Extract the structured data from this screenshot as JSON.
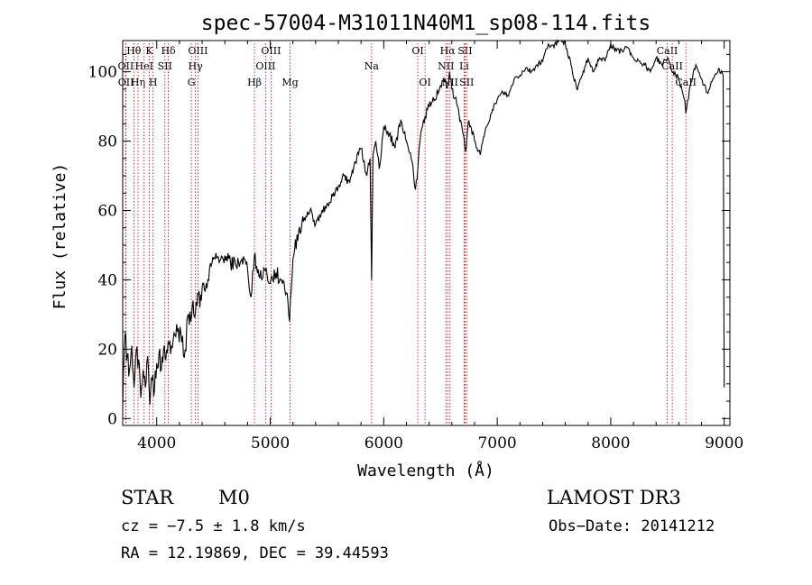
{
  "chart_data": {
    "type": "line",
    "title": "spec-57004-M31011N40M1_sp08-114.fits",
    "xlabel": "Wavelength (Å)",
    "ylabel": "Flux (relative)",
    "xlim": [
      3700,
      9050
    ],
    "ylim": [
      -2,
      109
    ],
    "grid": false,
    "x_ticks": [
      4000,
      5000,
      6000,
      7000,
      8000,
      9000
    ],
    "x_tick_labels": [
      "4000",
      "5000",
      "6000",
      "7000",
      "8000",
      "9000"
    ],
    "y_ticks": [
      0,
      20,
      40,
      60,
      80,
      100
    ],
    "y_tick_labels": [
      "0",
      "20",
      "40",
      "60",
      "80",
      "100"
    ],
    "line_color": "#000000",
    "marker_color": "#cc0000",
    "series": [
      {
        "name": "flux",
        "x": [
          3700,
          3720,
          3740,
          3760,
          3780,
          3800,
          3820,
          3840,
          3860,
          3880,
          3900,
          3920,
          3940,
          3960,
          3980,
          4000,
          4020,
          4040,
          4060,
          4080,
          4100,
          4130,
          4160,
          4190,
          4220,
          4250,
          4280,
          4300,
          4320,
          4340,
          4360,
          4380,
          4400,
          4420,
          4450,
          4480,
          4500,
          4550,
          4600,
          4650,
          4700,
          4750,
          4800,
          4830,
          4860,
          4880,
          4900,
          4950,
          5000,
          5050,
          5100,
          5150,
          5170,
          5185,
          5200,
          5250,
          5300,
          5350,
          5400,
          5450,
          5500,
          5550,
          5600,
          5650,
          5700,
          5750,
          5800,
          5850,
          5880,
          5893,
          5905,
          5930,
          5960,
          6000,
          6050,
          6100,
          6150,
          6200,
          6250,
          6280,
          6300,
          6320,
          6350,
          6400,
          6450,
          6500,
          6530,
          6563,
          6580,
          6600,
          6650,
          6700,
          6720,
          6750,
          6800,
          6850,
          6900,
          6950,
          7000,
          7050,
          7100,
          7150,
          7200,
          7250,
          7300,
          7350,
          7400,
          7450,
          7500,
          7550,
          7600,
          7650,
          7700,
          7750,
          7800,
          7850,
          7900,
          7950,
          8000,
          8050,
          8100,
          8150,
          8200,
          8250,
          8300,
          8350,
          8400,
          8450,
          8500,
          8550,
          8600,
          8650,
          8662,
          8700,
          8750,
          8800,
          8850,
          8900,
          8950,
          8990,
          9000
        ],
        "y": [
          3,
          24,
          18,
          14,
          21,
          9,
          20,
          17,
          6,
          14,
          9,
          18,
          4,
          11,
          8,
          16,
          19,
          14,
          20,
          17,
          22,
          21,
          24,
          26,
          22,
          20,
          30,
          28,
          34,
          30,
          36,
          32,
          38,
          37,
          40,
          44,
          46,
          45,
          47,
          45,
          44,
          46,
          43,
          35,
          47,
          44,
          41,
          43,
          39,
          42,
          40,
          36,
          28,
          37,
          46,
          54,
          58,
          60,
          56,
          59,
          62,
          64,
          67,
          70,
          68,
          74,
          78,
          70,
          75,
          40,
          76,
          80,
          72,
          84,
          82,
          78,
          86,
          80,
          74,
          66,
          72,
          80,
          86,
          90,
          92,
          96,
          98,
          96,
          100,
          95,
          90,
          82,
          77,
          86,
          80,
          76,
          84,
          88,
          92,
          94,
          93,
          98,
          99,
          101,
          100,
          102,
          103,
          108,
          107,
          110,
          108,
          102,
          95,
          99,
          104,
          100,
          104,
          103,
          108,
          106,
          106,
          107,
          104,
          103,
          102,
          100,
          104,
          102,
          104,
          100,
          98,
          92,
          88,
          96,
          102,
          98,
          94,
          98,
          101,
          99,
          9
        ]
      }
    ],
    "line_markers": [
      {
        "label": "Hθ",
        "wavelength": 3798,
        "row": 0
      },
      {
        "label": "OII",
        "wavelength": 3727,
        "row": 1
      },
      {
        "label": "OII",
        "wavelength": 3729,
        "row": 2
      },
      {
        "label": "Hη",
        "wavelength": 3835,
        "row": 2
      },
      {
        "label": "HeI",
        "wavelength": 3889,
        "row": 1
      },
      {
        "label": "K",
        "wavelength": 3934,
        "row": 0
      },
      {
        "label": "H",
        "wavelength": 3968,
        "row": 2
      },
      {
        "label": "SII",
        "wavelength": 4072,
        "row": 1
      },
      {
        "label": "Hδ",
        "wavelength": 4102,
        "row": 0
      },
      {
        "label": "OIII",
        "wavelength": 4363,
        "row": 0
      },
      {
        "label": "Hγ",
        "wavelength": 4341,
        "row": 1
      },
      {
        "label": "G",
        "wavelength": 4305,
        "row": 2
      },
      {
        "label": "Hβ",
        "wavelength": 4861,
        "row": 2
      },
      {
        "label": "OIII",
        "wavelength": 5007,
        "row": 0
      },
      {
        "label": "OIII",
        "wavelength": 4959,
        "row": 1
      },
      {
        "label": "Mg",
        "wavelength": 5175,
        "row": 2
      },
      {
        "label": "Na",
        "wavelength": 5893,
        "row": 1
      },
      {
        "label": "OI",
        "wavelength": 6300,
        "row": 0
      },
      {
        "label": "OI",
        "wavelength": 6364,
        "row": 2
      },
      {
        "label": "Hα",
        "wavelength": 6563,
        "row": 0
      },
      {
        "label": "NII",
        "wavelength": 6548,
        "row": 1
      },
      {
        "label": "NII",
        "wavelength": 6584,
        "row": 2
      },
      {
        "label": "SII",
        "wavelength": 6717,
        "row": 0
      },
      {
        "label": "Li",
        "wavelength": 6708,
        "row": 1
      },
      {
        "label": "SII",
        "wavelength": 6731,
        "row": 2
      },
      {
        "label": "CaII",
        "wavelength": 8498,
        "row": 0
      },
      {
        "label": "CaII",
        "wavelength": 8542,
        "row": 1
      },
      {
        "label": "CaII",
        "wavelength": 8662,
        "row": 2
      }
    ]
  },
  "footer": {
    "class_label": "STAR",
    "subclass": "M0",
    "survey": "LAMOST DR3",
    "redshift": "cz = −7.5 ± 1.8 km/s",
    "obs_date": "Obs−Date: 20141212",
    "coords": "RA =  12.19869, DEC =  39.44593"
  }
}
